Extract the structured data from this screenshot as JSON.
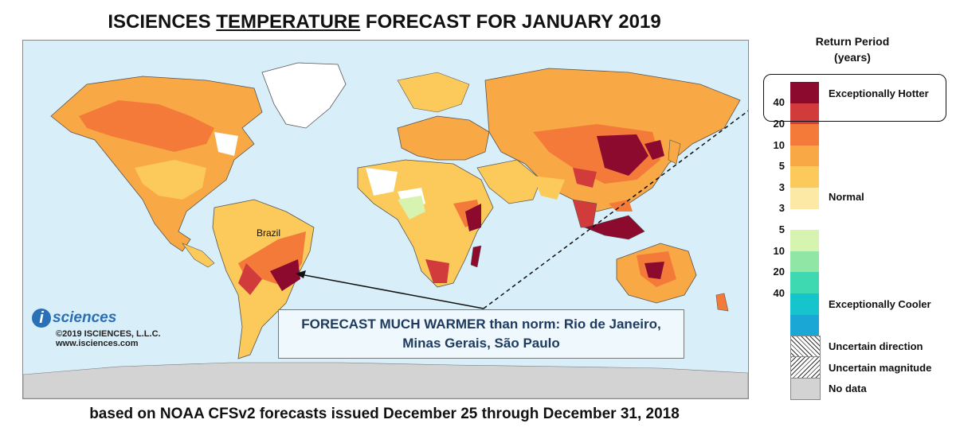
{
  "title": {
    "prefix": "ISCIENCES ",
    "underlined": "TEMPERATURE",
    "suffix": " FORECAST FOR JANUARY 2019"
  },
  "footer": "based on NOAA CFSv2 forecasts issued December 25 through December 31, 2018",
  "logo": {
    "i": "i",
    "word": "sciences",
    "copyright": "©2019 ISCIENCES, L.L.C.",
    "url": "www.isciences.com"
  },
  "map": {
    "label_brazil": "Brazil",
    "annotation": "FORECAST MUCH  WARMER than norm: Rio de Janeiro, Minas Gerais, São Paulo"
  },
  "legend": {
    "title_line1": "Return Period",
    "title_line2": "(years)",
    "colors": [
      "#8b0a2e",
      "#d13b3b",
      "#f47a3a",
      "#f9a846",
      "#fbca5a",
      "#fde9a6",
      "#ffffff",
      "#d6f3b0",
      "#90e6a4",
      "#3fd9b1",
      "#16c5cc",
      "#1ba7d6",
      "#1f66b8"
    ],
    "ticks": [
      "40",
      "20",
      "10",
      "5",
      "3",
      "3",
      "5",
      "10",
      "20",
      "40"
    ],
    "label_hot": "Exceptionally Hotter",
    "label_normal": "Normal",
    "label_cool": "Exceptionally Cooler",
    "uncertain_direction": "Uncertain direction",
    "uncertain_magnitude": "Uncertain magnitude",
    "no_data": "No data"
  }
}
